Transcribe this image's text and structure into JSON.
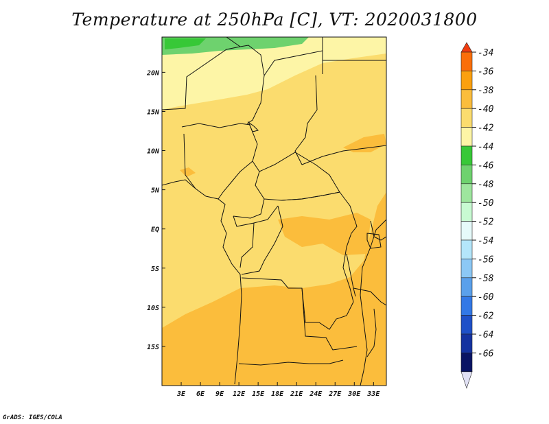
{
  "title": "Temperature at 250hPa [C], VT: 2020031800",
  "credit": "GrADS: IGES/COLA",
  "chart_data": {
    "type": "heatmap",
    "variable": "Temperature",
    "level": "250hPa",
    "units": "C",
    "valid_time": "2020031800",
    "lon_range": [
      0,
      35
    ],
    "lat_range": [
      -20,
      24.5
    ],
    "x_ticks": [
      "3E",
      "6E",
      "9E",
      "12E",
      "15E",
      "18E",
      "21E",
      "24E",
      "27E",
      "30E",
      "33E"
    ],
    "x_tick_values": [
      3,
      6,
      9,
      12,
      15,
      18,
      21,
      24,
      27,
      30,
      33
    ],
    "y_ticks": [
      "20N",
      "15N",
      "10N",
      "5N",
      "EQ",
      "5S",
      "10S",
      "15S"
    ],
    "y_tick_values": [
      20,
      15,
      10,
      5,
      0,
      -5,
      -10,
      -15
    ],
    "colorbar": {
      "labels": [
        "-34",
        "-36",
        "-38",
        "-40",
        "-42",
        "-44",
        "-46",
        "-48",
        "-50",
        "-52",
        "-54",
        "-56",
        "-58",
        "-60",
        "-62",
        "-64",
        "-66"
      ],
      "colors": [
        "#f03c10",
        "#fa6e0a",
        "#fba00f",
        "#fbbd3c",
        "#fbdc6e",
        "#fdf5a6",
        "#37c837",
        "#6ed26e",
        "#9ee69e",
        "#c8fad2",
        "#e6fafa",
        "#b4e6fa",
        "#8cc8f5",
        "#5aa0eb",
        "#3278e6",
        "#1e50c8",
        "#1432a0",
        "#0a1464",
        "#e1e1f5"
      ]
    },
    "field_regions": [
      {
        "name": "north-edge-green",
        "value": -45
      },
      {
        "name": "sahara-pale",
        "value": -42
      },
      {
        "name": "central-africa",
        "value": -40
      },
      {
        "name": "southern-orange",
        "value": -39
      }
    ]
  }
}
